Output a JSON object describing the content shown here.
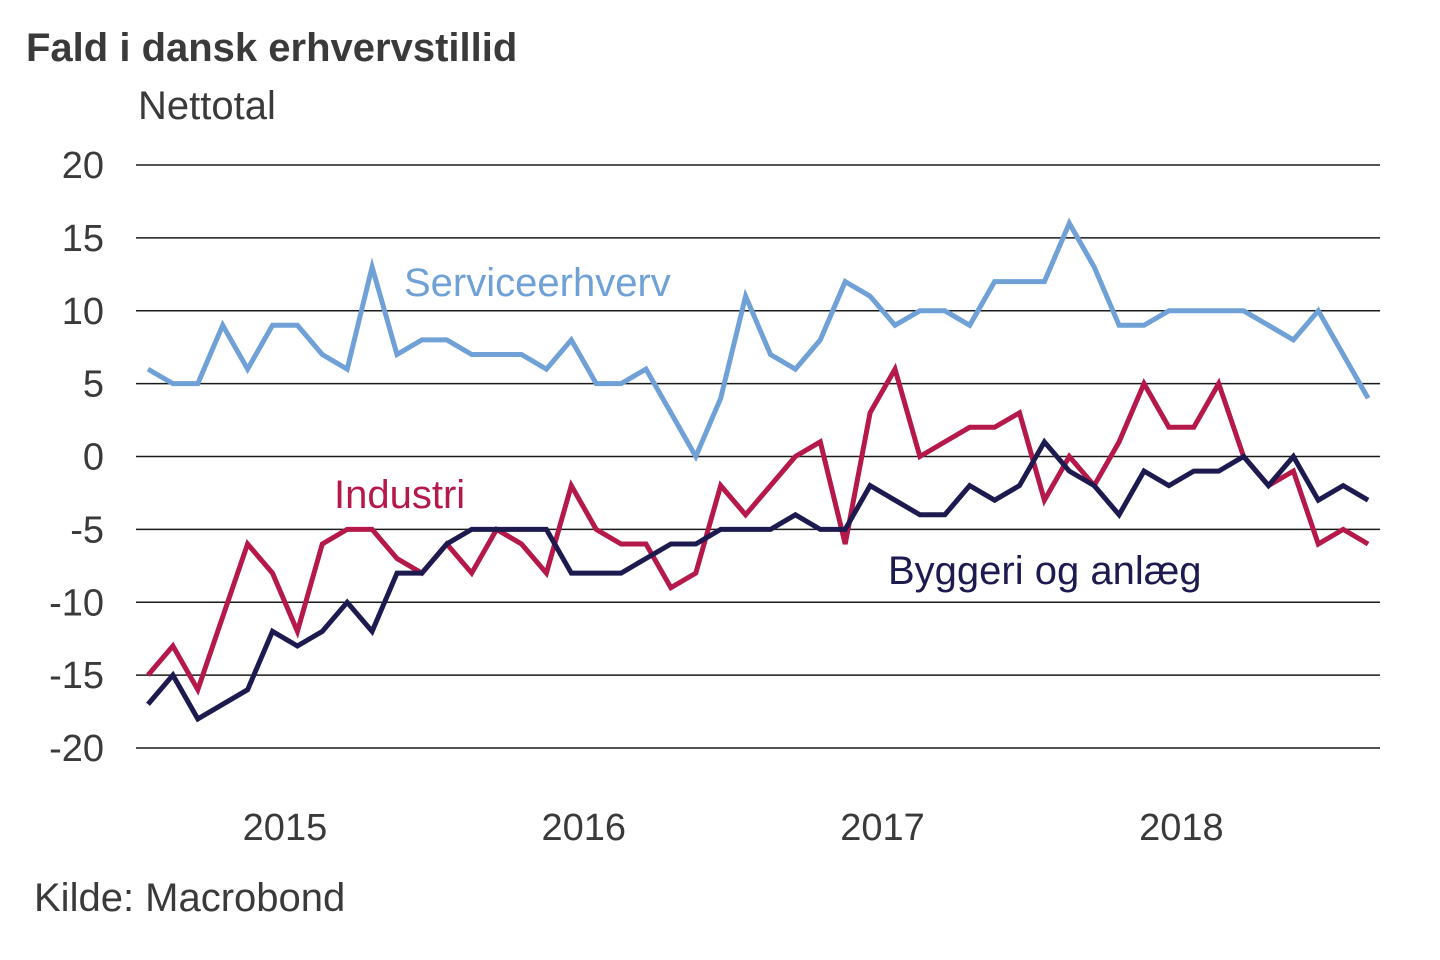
{
  "chart_data": {
    "type": "line",
    "title": "Fald i dansk erhvervstillid",
    "ylabel": "Nettotal",
    "xlabel": "",
    "source": "Kilde: Macrobond",
    "ylim": [
      -20,
      20
    ],
    "yticks": [
      20,
      15,
      10,
      5,
      0,
      -5,
      -10,
      -15,
      -20
    ],
    "ytick_labels": [
      "20",
      "15",
      "10",
      "5",
      "0",
      "-5",
      "-10",
      "-15",
      "-20"
    ],
    "xtick_labels": [
      {
        "label": "2015",
        "index": 5.5
      },
      {
        "label": "2016",
        "index": 17.5
      },
      {
        "label": "2017",
        "index": 29.5
      },
      {
        "label": "2018",
        "index": 41.5
      }
    ],
    "grid": true,
    "legend": "inline labels",
    "series": [
      {
        "name": "Serviceerhverv",
        "color": "#6fa0d6",
        "values": [
          6,
          5,
          5,
          9,
          6,
          9,
          9,
          7,
          6,
          13,
          7,
          8,
          8,
          7,
          7,
          7,
          6,
          8,
          5,
          5,
          6,
          3,
          0,
          4,
          11,
          7,
          6,
          8,
          12,
          11,
          9,
          10,
          10,
          9,
          12,
          12,
          12,
          16,
          13,
          9,
          9,
          10,
          10,
          10,
          10,
          9,
          8,
          10,
          7,
          4
        ]
      },
      {
        "name": "Industri",
        "color": "#b5194a",
        "values": [
          -15,
          -13,
          -16,
          -11,
          -6,
          -8,
          -12,
          -6,
          -5,
          -5,
          -7,
          -8,
          -6,
          -8,
          -5,
          -6,
          -8,
          -2,
          -5,
          -6,
          -6,
          -9,
          -8,
          -2,
          -4,
          -2,
          0,
          1,
          -6,
          3,
          6,
          0,
          1,
          2,
          2,
          3,
          -3,
          0,
          -2,
          1,
          5,
          2,
          2,
          5,
          0,
          -2,
          -1,
          -6,
          -5,
          -6
        ]
      },
      {
        "name": "Byggeri og anlæg",
        "color": "#1c1a4f",
        "values": [
          -17,
          -15,
          -18,
          -17,
          -16,
          -12,
          -13,
          -12,
          -10,
          -12,
          -8,
          -8,
          -6,
          -5,
          -5,
          -5,
          -5,
          -8,
          -8,
          -8,
          -7,
          -6,
          -6,
          -5,
          -5,
          -5,
          -4,
          -5,
          -5,
          -2,
          -3,
          -4,
          -4,
          -2,
          -3,
          -2,
          1,
          -1,
          -2,
          -4,
          -1,
          -2,
          -1,
          -1,
          0,
          -2,
          0,
          -3,
          -2,
          -3
        ]
      }
    ]
  }
}
